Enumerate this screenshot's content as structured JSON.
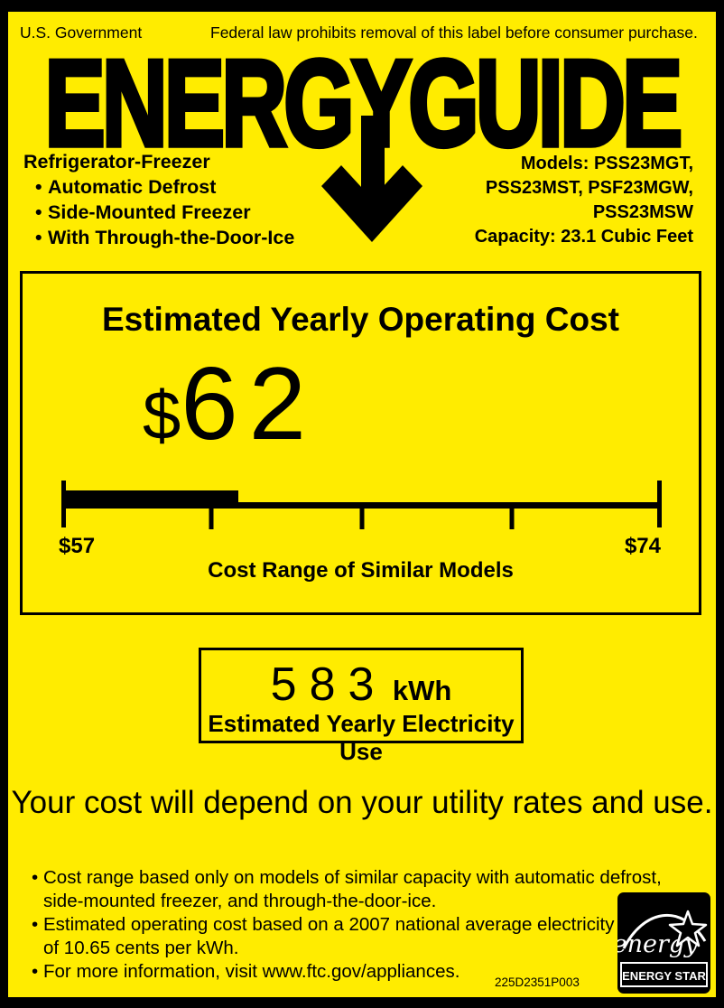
{
  "colors": {
    "label_yellow": "#FFEC00",
    "ink_black": "#000000",
    "logo_white": "#FFFFFF"
  },
  "header": {
    "agency": "U.S. Government",
    "notice": "Federal law prohibits removal of this label before consumer purchase."
  },
  "logo": {
    "text": "ENERGYGUIDE"
  },
  "appliance": {
    "type": "Refrigerator-Freezer",
    "bullet_glyph": "•",
    "features": [
      "Automatic Defrost",
      "Side-Mounted Freezer",
      "With Through-the-Door-Ice"
    ],
    "model_lines": [
      "Models: PSS23MGT,",
      "PSS23MST, PSF23MGW,",
      "PSS23MSW"
    ],
    "capacity": "Capacity: 23.1 Cubic Feet"
  },
  "operating_cost": {
    "title": "Estimated Yearly Operating Cost",
    "currency_symbol": "$",
    "amount": "62",
    "scale": {
      "min": 57,
      "max": 74,
      "value": 62,
      "min_label": "$57",
      "max_label": "$74",
      "caption": "Cost Range of Similar Models"
    }
  },
  "electricity_use": {
    "amount": "583",
    "unit": "kWh",
    "caption": "Estimated Yearly Electricity Use"
  },
  "cost_note": "Your cost will depend on your utility rates and use.",
  "footnote_lines": [
    {
      "bullet": true,
      "text": "Cost range based only on models of similar capacity with automatic defrost,"
    },
    {
      "bullet": false,
      "text": "side-mounted freezer, and through-the-door-ice."
    },
    {
      "bullet": true,
      "text": "Estimated operating cost based on a 2007 national average electricity cost"
    },
    {
      "bullet": false,
      "text": "of 10.65 cents per kWh."
    },
    {
      "bullet": true,
      "text": "For more information, visit www.ftc.gov/appliances."
    }
  ],
  "part_number": "225D2351P003",
  "energy_star": {
    "script_text": "energy",
    "label_text": "ENERGY STAR"
  }
}
